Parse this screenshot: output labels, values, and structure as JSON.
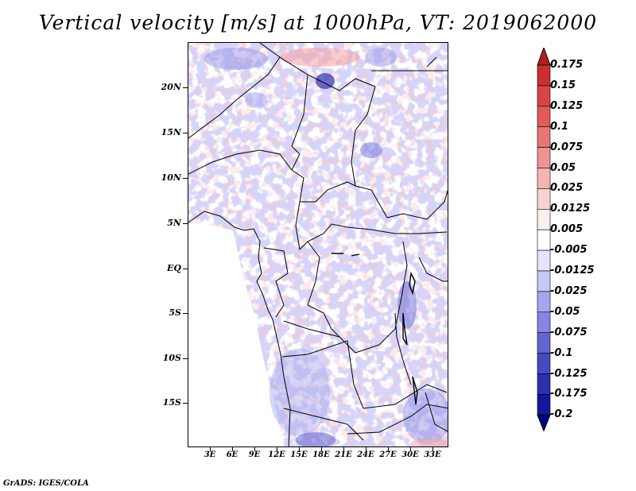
{
  "title": "Vertical velocity [m/s] at 1000hPa, VT: 2019062000",
  "footer": "GrADS: IGES/COLA",
  "y_axis": [
    "20N",
    "15N",
    "10N",
    "5N",
    "EQ",
    "5S",
    "10S",
    "15S"
  ],
  "x_axis": [
    "3E",
    "6E",
    "9E",
    "12E",
    "15E",
    "18E",
    "21E",
    "24E",
    "27E",
    "30E",
    "33E"
  ],
  "colorbar": {
    "labels": [
      "0.175",
      "0.15",
      "0.125",
      "0.1",
      "0.075",
      "0.05",
      "0.025",
      "0.0125",
      "0.005",
      "-0.005",
      "-0.0125",
      "-0.025",
      "-0.05",
      "-0.075",
      "-0.1",
      "-0.125",
      "-0.175",
      "-0.2"
    ],
    "colors": [
      "#b41e1e",
      "#cd2e2e",
      "#d94444",
      "#e35a5a",
      "#e87575",
      "#ee9494",
      "#f4b4b4",
      "#f8d2d2",
      "#fdeeee",
      "#ffffff",
      "#e4e4fc",
      "#c8c8f6",
      "#a6a6ee",
      "#8585e2",
      "#6464d2",
      "#4848c2",
      "#2e2eae",
      "#16169a",
      "#000080"
    ]
  },
  "map": {
    "lat_range": [
      -20,
      25
    ],
    "lon_range": [
      0,
      35
    ]
  }
}
